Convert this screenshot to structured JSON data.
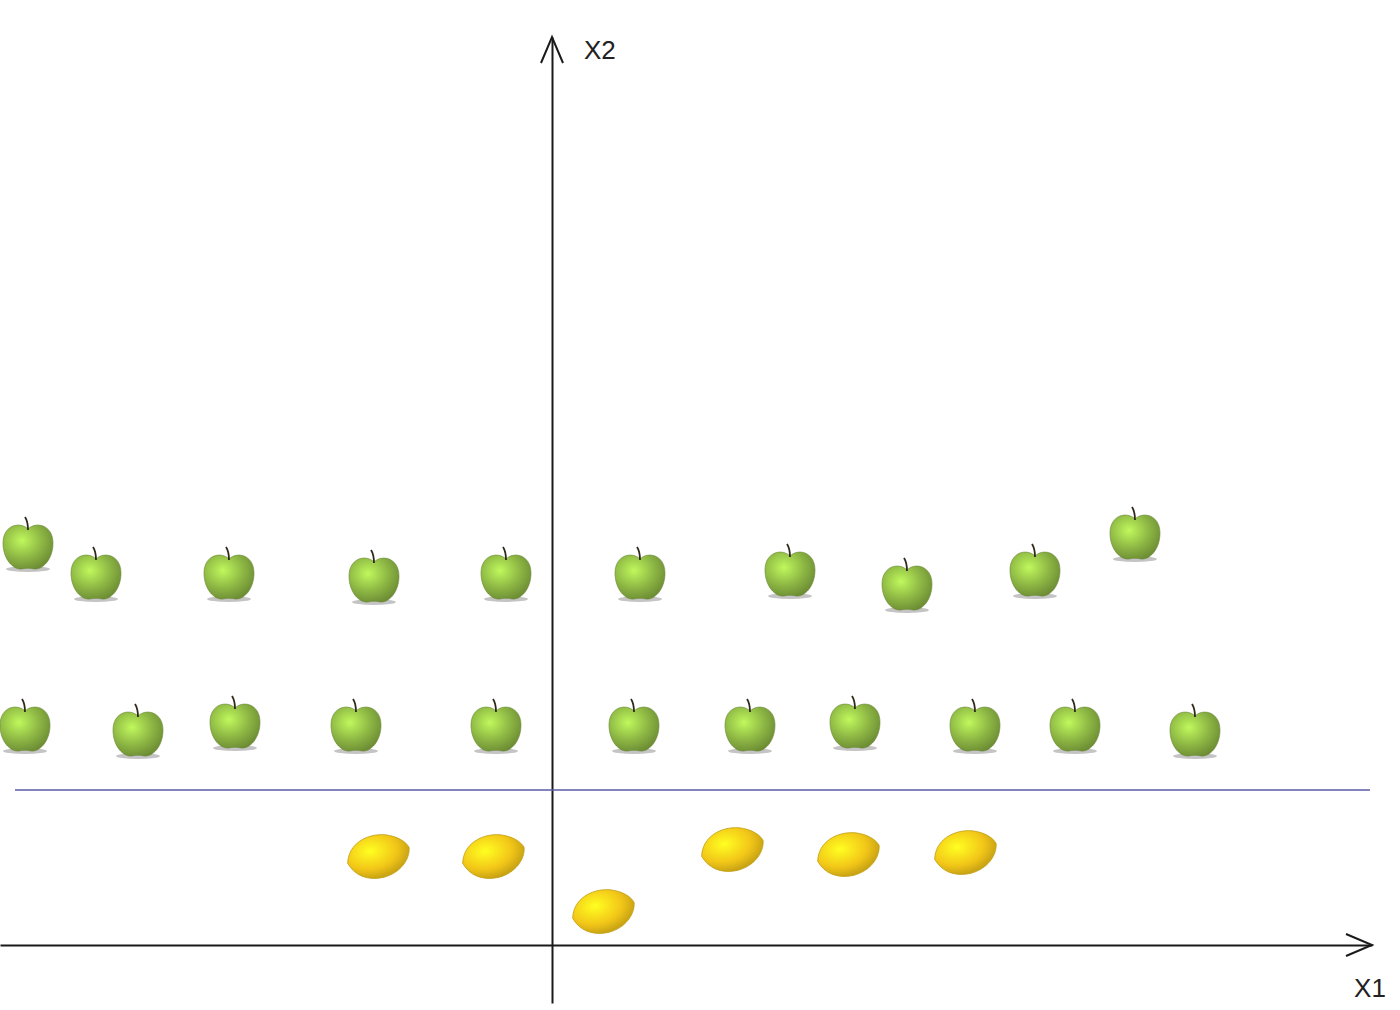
{
  "chart_data": {
    "type": "scatter",
    "x_label": "X1",
    "y_label": "X2",
    "xlim": [
      -5.52,
      8.2
    ],
    "ylim": [
      -0.58,
      9.08
    ],
    "tick_labels": false,
    "grid": false,
    "series": [
      {
        "color": "#8bb443",
        "marker": "apple",
        "x": [
          -5.24,
          -4.56,
          -3.23,
          -1.78,
          -0.46,
          0.88,
          2.38,
          3.55,
          4.83,
          5.83,
          -5.27,
          -4.14,
          -3.17,
          -1.96,
          -0.56,
          0.82,
          1.98,
          3.03,
          4.23,
          5.23,
          6.43
        ],
        "values": [
          4.0,
          3.7,
          3.7,
          3.67,
          3.7,
          3.7,
          3.73,
          3.59,
          3.73,
          4.1,
          2.18,
          2.13,
          2.21,
          2.18,
          2.18,
          2.18,
          2.18,
          2.21,
          2.18,
          2.18,
          2.13
        ]
      },
      {
        "color": "#f2c618",
        "marker": "lemon",
        "x": [
          -1.74,
          -0.59,
          0.51,
          1.8,
          2.96,
          4.13
        ],
        "values": [
          0.89,
          0.89,
          0.34,
          0.96,
          0.91,
          0.93
        ]
      },
      {
        "type": "line",
        "color": "#5a5aa8",
        "line_style": "solid",
        "x": [
          -5.37,
          8.18
        ],
        "values": [
          1.55,
          1.55
        ]
      }
    ]
  }
}
